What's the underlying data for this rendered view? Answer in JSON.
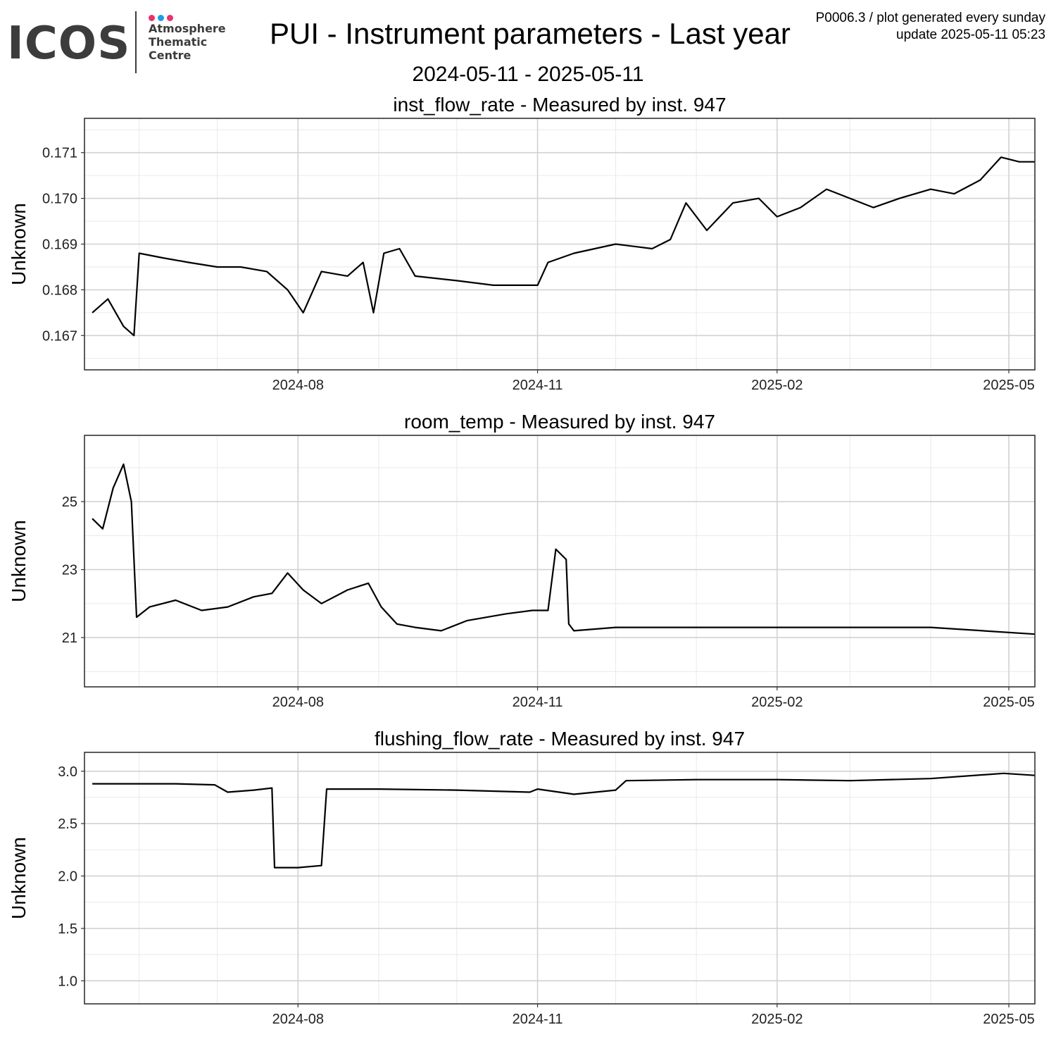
{
  "logo": {
    "text": "ICOS",
    "subtitle_lines": [
      "Atmosphere",
      "Thematic",
      "Centre"
    ],
    "dot_colors": [
      "#e9326e",
      "#1e9be8",
      "#e9326e"
    ],
    "text_color": "#3c3c3c"
  },
  "header": {
    "title": "PUI - Instrument parameters - Last year",
    "date_range": "2024-05-11 - 2025-05-11",
    "meta_line1": "P0006.3 / plot generated every sunday",
    "meta_line2": "update  2025-05-11 05:23"
  },
  "chart_data": [
    {
      "type": "line",
      "title": "inst_flow_rate - Measured by inst. 947",
      "ylabel": "Unknown",
      "xlabel": "",
      "x_range": [
        "2024-05-11",
        "2025-05-11"
      ],
      "ylim": [
        0.16625,
        0.17175
      ],
      "y_ticks": [
        0.167,
        0.168,
        0.169,
        0.17,
        0.171
      ],
      "y_tick_labels": [
        "0.167",
        "0.168",
        "0.169",
        "0.170",
        "0.171"
      ],
      "x_ticks": [
        "2024-08-01",
        "2024-11-01",
        "2025-02-01",
        "2025-05-01"
      ],
      "x_tick_labels": [
        "2024-08",
        "2024-11",
        "2025-02",
        "2025-05"
      ],
      "grid": true,
      "series": [
        {
          "line_color": "#000000",
          "x": [
            "2024-05-14",
            "2024-05-20",
            "2024-05-26",
            "2024-05-30",
            "2024-06-01",
            "2024-06-10",
            "2024-06-20",
            "2024-07-01",
            "2024-07-10",
            "2024-07-20",
            "2024-07-28",
            "2024-08-03",
            "2024-08-10",
            "2024-08-20",
            "2024-08-26",
            "2024-08-30",
            "2024-09-03",
            "2024-09-09",
            "2024-09-15",
            "2024-10-01",
            "2024-10-15",
            "2024-11-01",
            "2024-11-05",
            "2024-11-15",
            "2024-12-01",
            "2024-12-15",
            "2024-12-22",
            "2024-12-28",
            "2025-01-05",
            "2025-01-15",
            "2025-01-25",
            "2025-02-01",
            "2025-02-10",
            "2025-02-20",
            "2025-03-01",
            "2025-03-10",
            "2025-03-20",
            "2025-04-01",
            "2025-04-10",
            "2025-04-20",
            "2025-04-28",
            "2025-05-05",
            "2025-05-11"
          ],
          "values": [
            0.1675,
            0.1678,
            0.1672,
            0.167,
            0.1688,
            0.1687,
            0.1686,
            0.1685,
            0.1685,
            0.1684,
            0.168,
            0.1675,
            0.1684,
            0.1683,
            0.1686,
            0.1675,
            0.1688,
            0.1689,
            0.1683,
            0.1682,
            0.1681,
            0.1681,
            0.1686,
            0.1688,
            0.169,
            0.1689,
            0.1691,
            0.1699,
            0.1693,
            0.1699,
            0.17,
            0.1696,
            0.1698,
            0.1702,
            0.17,
            0.1698,
            0.17,
            0.1702,
            0.1701,
            0.1704,
            0.1709,
            0.1708,
            0.1708
          ]
        }
      ]
    },
    {
      "type": "line",
      "title": "room_temp - Measured by inst. 947",
      "ylabel": "Unknown",
      "xlabel": "",
      "x_range": [
        "2024-05-11",
        "2025-05-11"
      ],
      "ylim": [
        19.55,
        26.95
      ],
      "y_ticks": [
        21,
        23,
        25
      ],
      "y_tick_labels": [
        "21",
        "23",
        "25"
      ],
      "x_ticks": [
        "2024-08-01",
        "2024-11-01",
        "2025-02-01",
        "2025-05-01"
      ],
      "x_tick_labels": [
        "2024-08",
        "2024-11",
        "2025-02",
        "2025-05"
      ],
      "grid": true,
      "series": [
        {
          "line_color": "#000000",
          "x": [
            "2024-05-14",
            "2024-05-18",
            "2024-05-22",
            "2024-05-26",
            "2024-05-29",
            "2024-05-31",
            "2024-06-05",
            "2024-06-15",
            "2024-06-25",
            "2024-07-05",
            "2024-07-15",
            "2024-07-22",
            "2024-07-28",
            "2024-08-03",
            "2024-08-10",
            "2024-08-20",
            "2024-08-28",
            "2024-09-02",
            "2024-09-08",
            "2024-09-15",
            "2024-09-25",
            "2024-10-05",
            "2024-10-20",
            "2024-10-30",
            "2024-11-05",
            "2024-11-08",
            "2024-11-12",
            "2024-11-13",
            "2024-11-15",
            "2024-12-01",
            "2025-01-01",
            "2025-02-01",
            "2025-03-01",
            "2025-04-01",
            "2025-05-11"
          ],
          "values": [
            24.5,
            24.2,
            25.4,
            26.1,
            25.0,
            21.6,
            21.9,
            22.1,
            21.8,
            21.9,
            22.2,
            22.3,
            22.9,
            22.4,
            22.0,
            22.4,
            22.6,
            21.9,
            21.4,
            21.3,
            21.2,
            21.5,
            21.7,
            21.8,
            21.8,
            23.6,
            23.3,
            21.4,
            21.2,
            21.3,
            21.3,
            21.3,
            21.3,
            21.3,
            21.1
          ]
        }
      ]
    },
    {
      "type": "line",
      "title": "flushing_flow_rate - Measured by inst. 947",
      "ylabel": "Unknown",
      "xlabel": "",
      "x_range": [
        "2024-05-11",
        "2025-05-11"
      ],
      "ylim": [
        0.78,
        3.18
      ],
      "y_ticks": [
        1.0,
        1.5,
        2.0,
        2.5,
        3.0
      ],
      "y_tick_labels": [
        "1.0",
        "1.5",
        "2.0",
        "2.5",
        "3.0"
      ],
      "x_ticks": [
        "2024-08-01",
        "2024-11-01",
        "2025-02-01",
        "2025-05-01"
      ],
      "x_tick_labels": [
        "2024-08",
        "2024-11",
        "2025-02",
        "2025-05"
      ],
      "grid": true,
      "series": [
        {
          "line_color": "#000000",
          "x": [
            "2024-05-14",
            "2024-06-01",
            "2024-06-15",
            "2024-06-30",
            "2024-07-05",
            "2024-07-15",
            "2024-07-22",
            "2024-07-23",
            "2024-08-01",
            "2024-08-10",
            "2024-08-12",
            "2024-09-01",
            "2024-10-01",
            "2024-10-29",
            "2024-11-01",
            "2024-11-15",
            "2024-12-01",
            "2024-12-05",
            "2025-01-01",
            "2025-02-01",
            "2025-03-01",
            "2025-04-01",
            "2025-04-29",
            "2025-05-11"
          ],
          "values": [
            2.88,
            2.88,
            2.88,
            2.87,
            2.8,
            2.82,
            2.84,
            2.08,
            2.08,
            2.1,
            2.83,
            2.83,
            2.82,
            2.8,
            2.83,
            2.78,
            2.82,
            2.91,
            2.92,
            2.92,
            2.91,
            2.93,
            2.98,
            2.96
          ]
        }
      ]
    }
  ]
}
